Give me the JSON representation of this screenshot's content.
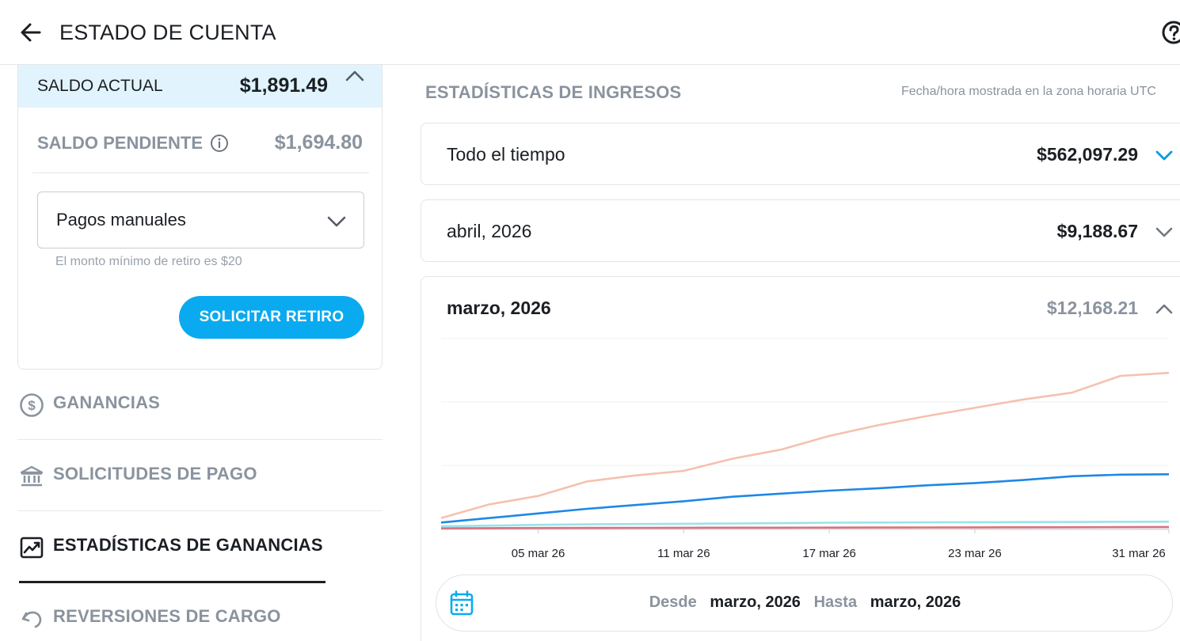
{
  "header": {
    "title": "ESTADO DE CUENTA",
    "back_icon": "arrow-left-icon",
    "help_icon": "help-circle-icon"
  },
  "balance": {
    "current_label": "SALDO ACTUAL",
    "current_value": "$1,891.49",
    "pending_label": "SALDO PENDIENTE",
    "pending_value": "$1,694.80",
    "payout_method": "Pagos manuales",
    "min_note": "El monto mínimo de retiro es $20",
    "withdraw_label": "SOLICITAR RETIRO"
  },
  "nav": {
    "items": [
      {
        "label": "GANANCIAS",
        "icon": "dollar-circle-icon",
        "active": false
      },
      {
        "label": "SOLICITUDES DE PAGO",
        "icon": "bank-icon",
        "active": false
      },
      {
        "label": "ESTADÍSTICAS DE GANANCIAS",
        "icon": "chart-line-icon",
        "active": true
      },
      {
        "label": "REVERSIONES DE CARGO",
        "icon": "undo-icon",
        "active": false
      }
    ]
  },
  "stats": {
    "title": "ESTADÍSTICAS DE INGRESOS",
    "timezone_note": "Fecha/hora mostrada en la zona horaria UTC",
    "periods": [
      {
        "label": "Todo el tiempo",
        "value": "$562,097.29",
        "expanded": false
      },
      {
        "label": "abril, 2026",
        "value": "$9,188.67",
        "expanded": false
      },
      {
        "label": "marzo, 2026",
        "value": "$12,168.21",
        "expanded": true
      }
    ],
    "range": {
      "from_label": "Desde",
      "from_value": "marzo, 2026",
      "to_label": "Hasta",
      "to_value": "marzo, 2026"
    }
  },
  "colors": {
    "accent": "#0aaaf0",
    "highlight_bg": "#e1f4fd",
    "series_total": "#f6c0b0",
    "series_blue": "#1e88e5",
    "series_cyan": "#9be3ea",
    "series_red": "#d9727f"
  },
  "chart_data": {
    "type": "line",
    "x_tick_labels": [
      "05 mar 26",
      "11 mar 26",
      "17 mar 26",
      "23 mar 26",
      "31 mar 26"
    ],
    "x": [
      1,
      3,
      5,
      7,
      9,
      11,
      13,
      15,
      17,
      19,
      21,
      23,
      25,
      27,
      29,
      31
    ],
    "ylim": [
      0,
      12500
    ],
    "grid": true,
    "legend": "none",
    "series": [
      {
        "color": "#f6c0b0",
        "values": [
          700,
          1600,
          2150,
          3100,
          3500,
          3800,
          4600,
          5200,
          6100,
          6800,
          7400,
          7950,
          8500,
          8950,
          10050,
          10250
        ]
      },
      {
        "color": "#1e88e5",
        "values": [
          400,
          700,
          1000,
          1300,
          1550,
          1800,
          2100,
          2300,
          2500,
          2650,
          2850,
          3000,
          3200,
          3450,
          3550,
          3580
        ]
      },
      {
        "color": "#9be3ea",
        "values": [
          150,
          200,
          250,
          280,
          300,
          320,
          340,
          360,
          390,
          400,
          410,
          420,
          430,
          440,
          450,
          460
        ]
      },
      {
        "color": "#d9727f",
        "values": [
          20,
          30,
          40,
          45,
          50,
          55,
          60,
          65,
          70,
          75,
          80,
          85,
          90,
          95,
          100,
          110
        ]
      }
    ]
  }
}
